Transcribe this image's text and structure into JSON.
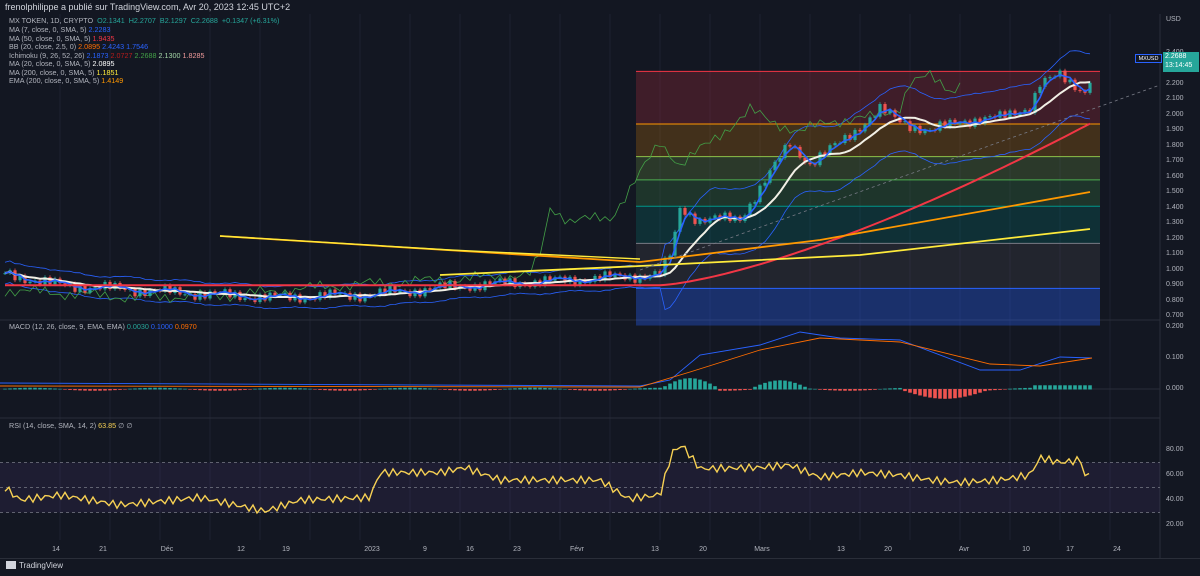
{
  "header": {
    "text": "frenolphilippe a publié sur TradingView.com, Avr 20, 2023 12:45 UTC+2"
  },
  "legend": {
    "main": {
      "label": "MX TOKEN, 1D, CRYPTO",
      "o": "O2.1341",
      "h": "H2.2707",
      "b": "B2.1297",
      "c": "C2.2688",
      "chg": "+0.1347 (+6.31%)"
    },
    "lines": [
      {
        "label": "MA (7, close, 0, SMA, 5)",
        "values": [
          "2.2283"
        ],
        "colors": [
          "#2962ff"
        ]
      },
      {
        "label": "MA (50, close, 0, SMA, 5)",
        "values": [
          "1.9435"
        ],
        "colors": [
          "#f23645"
        ]
      },
      {
        "label": "BB (20, close, 2.5, 0)",
        "values": [
          "2.0895",
          "2.4243",
          "1.7546"
        ],
        "colors": [
          "#ff6d00",
          "#2962ff",
          "#2962ff"
        ]
      },
      {
        "label": "Ichimoku (9, 26, 52, 26)",
        "values": [
          "2.1873",
          "2.0727",
          "2.2688",
          "2.1300",
          "1.8285"
        ],
        "colors": [
          "#2962ff",
          "#b71c1c",
          "#43a047",
          "#a5d6a7",
          "#ef9a9a"
        ]
      },
      {
        "label": "MA (20, close, 0, SMA, 5)",
        "values": [
          "2.0895"
        ],
        "colors": [
          "#ffffff"
        ]
      },
      {
        "label": "MA (200, close, 0, SMA, 5)",
        "values": [
          "1.1851"
        ],
        "colors": [
          "#ffeb3b"
        ]
      },
      {
        "label": "EMA (200, close, 0, SMA, 5)",
        "values": [
          "1.4149"
        ],
        "colors": [
          "#ff9800"
        ]
      }
    ],
    "macd": {
      "label": "MACD (12, 26, close, 9, EMA, EMA)",
      "values": [
        "0.0030",
        "0.1000",
        "0.0970"
      ],
      "colors": [
        "#26a69a",
        "#2962ff",
        "#ff6d00"
      ]
    },
    "rsi": {
      "label": "RSI (14, close, SMA, 14, 2)",
      "value": "63.85",
      "extra": "∅ ∅"
    }
  },
  "price_axis": {
    "currency": "USD",
    "symbol": "MXUSD",
    "last": "2.2688",
    "countdown": "13:14:45",
    "ticks": [
      "2.400",
      "2.300",
      "2.200",
      "2.100",
      "2.000",
      "1.900",
      "1.800",
      "1.700",
      "1.600",
      "1.500",
      "1.400",
      "1.300",
      "1.200",
      "1.100",
      "1.000",
      "0.900",
      "0.800",
      "0.700"
    ]
  },
  "macd_axis": {
    "ticks": [
      "0.200",
      "0.100",
      "0.000"
    ]
  },
  "rsi_axis": {
    "ticks": [
      "80.00",
      "60.00",
      "40.00",
      "20.00"
    ]
  },
  "x_axis": {
    "labels": [
      "14",
      "21",
      "Déc",
      "12",
      "19",
      "2023",
      "9",
      "16",
      "23",
      "Févr",
      "13",
      "20",
      "Mars",
      "13",
      "20",
      "Avr",
      "10",
      "17",
      "24"
    ]
  },
  "footer": {
    "brand": "TradingView"
  },
  "colors": {
    "bg": "#131722",
    "up": "#26a69a",
    "down": "#ef5350",
    "grid": "#1e222d"
  },
  "chart_data": {
    "type": "line",
    "title": "MX TOKEN, 1D, CRYPTO",
    "ylim": [
      0.65,
      2.45
    ],
    "close_series": {
      "name": "close",
      "x": [
        "Nov 10",
        "Dec 1",
        "Jan 1",
        "Feb 1",
        "Feb 13",
        "Feb 16",
        "Mar 1",
        "Mar 8",
        "Mar 14",
        "Mar 20",
        "Apr 1",
        "Apr 10",
        "Apr 19"
      ],
      "values": [
        0.98,
        0.86,
        0.86,
        0.94,
        0.97,
        1.4,
        1.4,
        1.84,
        1.92,
        2.03,
        1.99,
        2.18,
        2.27
      ]
    },
    "fib_levels": [
      2.28,
      1.94,
      1.73,
      1.58,
      1.41,
      1.17,
      0.88
    ]
  }
}
